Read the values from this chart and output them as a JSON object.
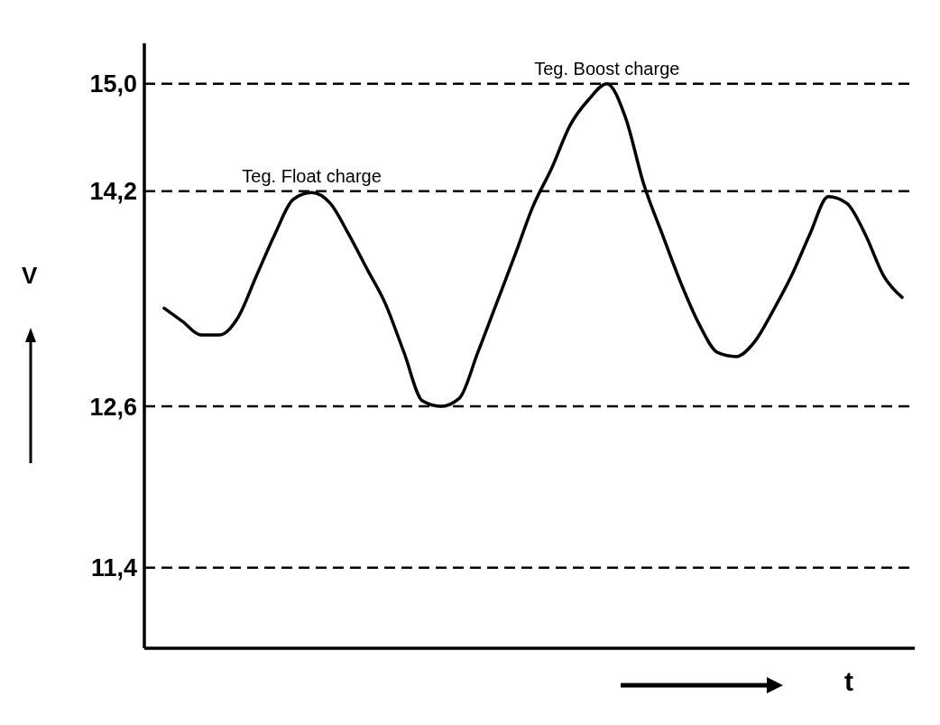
{
  "chart_data": {
    "type": "line",
    "xlabel": "t",
    "ylabel": "V",
    "categories": [
      null,
      null,
      null,
      null,
      null,
      null,
      null,
      null,
      null,
      null,
      null,
      null,
      null,
      null,
      null,
      null,
      null,
      null,
      null,
      null,
      null,
      null,
      null,
      null,
      null,
      null,
      null,
      null,
      null,
      null,
      null,
      null,
      null,
      null,
      null,
      null,
      null,
      null,
      null,
      null,
      null
    ],
    "values": [
      13.33,
      13.23,
      13.13,
      13.13,
      13.26,
      13.57,
      13.88,
      14.14,
      14.19,
      14.11,
      13.88,
      13.62,
      13.36,
      13.0,
      12.64,
      12.6,
      12.66,
      13.0,
      13.36,
      13.72,
      14.09,
      14.37,
      14.69,
      14.88,
      15.0,
      14.75,
      14.25,
      13.88,
      13.52,
      13.21,
      13.0,
      12.97,
      13.08,
      13.31,
      13.57,
      13.88,
      14.16,
      14.11,
      13.88,
      13.57,
      13.41
    ],
    "color": "#000000",
    "line_style": "solid",
    "ylim": [
      10.8,
      15.3
    ],
    "yticks": [
      {
        "value": 11.4,
        "label": "11,4"
      },
      {
        "value": 12.6,
        "label": "12,6"
      },
      {
        "value": 14.2,
        "label": "14,2"
      },
      {
        "value": 15.0,
        "label": "15,0"
      }
    ],
    "tick_labels": "y",
    "ref_lines": [
      {
        "axis": "y",
        "value": 15.0,
        "label": "Teg. Boost charge",
        "color": "#000000",
        "line_style": "dashed"
      },
      {
        "axis": "y",
        "value": 14.2,
        "label": "Teg. Float charge",
        "color": "#000000",
        "line_style": "dashed"
      },
      {
        "axis": "y",
        "value": 12.6,
        "label": null,
        "color": "#000000",
        "line_style": "dashed"
      },
      {
        "axis": "y",
        "value": 11.4,
        "label": null,
        "color": "#000000",
        "line_style": "dashed"
      }
    ]
  }
}
